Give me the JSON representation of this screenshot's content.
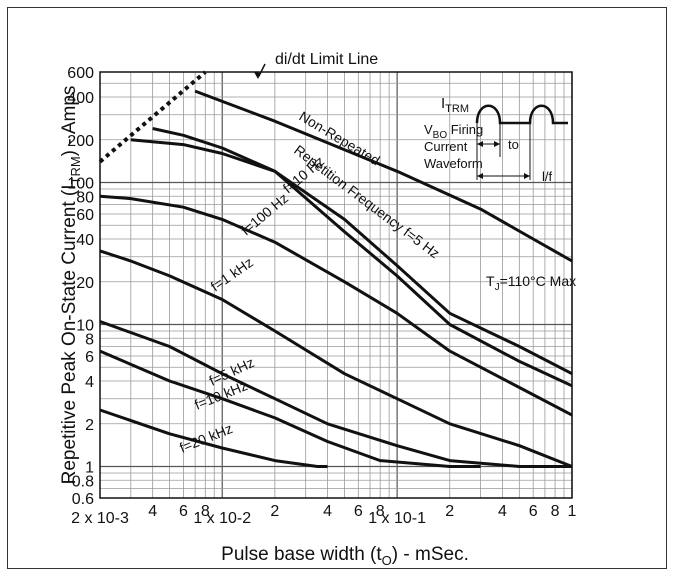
{
  "chart_data": {
    "type": "line",
    "title": "",
    "xlabel": "Pulse base width (tO) - mSec.",
    "ylabel": "Repetitive Peak On-State Current (ITRM) - Amps",
    "x_scale": "log",
    "y_scale": "log",
    "xlim": [
      0.002,
      1.0
    ],
    "ylim": [
      0.6,
      600
    ],
    "x_tick_labels": [
      {
        "v": 0.002,
        "t": "2 x 10-3"
      },
      {
        "v": 0.004,
        "t": "4"
      },
      {
        "v": 0.006,
        "t": "6"
      },
      {
        "v": 0.008,
        "t": "8"
      },
      {
        "v": 0.01,
        "t": "1 x 10-2"
      },
      {
        "v": 0.02,
        "t": "2"
      },
      {
        "v": 0.04,
        "t": "4"
      },
      {
        "v": 0.06,
        "t": "6"
      },
      {
        "v": 0.08,
        "t": "8"
      },
      {
        "v": 0.1,
        "t": "1 x 10-1"
      },
      {
        "v": 0.2,
        "t": "2"
      },
      {
        "v": 0.4,
        "t": "4"
      },
      {
        "v": 0.6,
        "t": "6"
      },
      {
        "v": 0.8,
        "t": "8"
      },
      {
        "v": 1.0,
        "t": "1"
      }
    ],
    "y_tick_labels": [
      {
        "v": 600,
        "t": "600"
      },
      {
        "v": 400,
        "t": "400"
      },
      {
        "v": 200,
        "t": "200"
      },
      {
        "v": 100,
        "t": "100"
      },
      {
        "v": 80,
        "t": "80"
      },
      {
        "v": 60,
        "t": "60"
      },
      {
        "v": 40,
        "t": "40"
      },
      {
        "v": 20,
        "t": "20"
      },
      {
        "v": 10,
        "t": "10"
      },
      {
        "v": 8,
        "t": "8"
      },
      {
        "v": 6,
        "t": "6"
      },
      {
        "v": 4,
        "t": "4"
      },
      {
        "v": 2,
        "t": "2"
      },
      {
        "v": 1,
        "t": "1"
      },
      {
        "v": 0.8,
        "t": "0.8"
      },
      {
        "v": 0.6,
        "t": "0.6"
      }
    ],
    "grid": true,
    "series": [
      {
        "name": "Non-Repeated",
        "x": [
          0.007,
          0.02,
          0.05,
          0.1,
          0.3,
          0.6,
          1.0
        ],
        "y": [
          440,
          270,
          170,
          120,
          65,
          40,
          28
        ]
      },
      {
        "name": "Repetition Frequency f=5 Hz",
        "x": [
          0.003,
          0.006,
          0.01,
          0.02,
          0.05,
          0.1,
          0.2,
          0.5,
          1.0
        ],
        "y": [
          200,
          185,
          160,
          120,
          55,
          26,
          12,
          7,
          4.5
        ]
      },
      {
        "name": "f=10 Hz",
        "x": [
          0.004,
          0.006,
          0.01,
          0.02,
          0.05,
          0.1,
          0.2,
          0.5,
          1.0
        ],
        "y": [
          240,
          215,
          175,
          120,
          45,
          22,
          10,
          5.5,
          3.7
        ]
      },
      {
        "name": "f=100 Hz",
        "x": [
          0.002,
          0.003,
          0.006,
          0.01,
          0.02,
          0.05,
          0.1,
          0.2,
          0.5,
          1.0
        ],
        "y": [
          80,
          77,
          67,
          55,
          38,
          20,
          12,
          6.5,
          3.6,
          2.3
        ]
      },
      {
        "name": "f=1 kHz",
        "x": [
          0.002,
          0.003,
          0.005,
          0.01,
          0.02,
          0.05,
          0.1,
          0.2,
          0.5,
          1.0
        ],
        "y": [
          33,
          28,
          22,
          15,
          9,
          4.5,
          3,
          2,
          1.4,
          1.0
        ]
      },
      {
        "name": "f=5 kHz",
        "x": [
          0.002,
          0.005,
          0.01,
          0.02,
          0.04,
          0.1,
          0.2,
          0.5,
          1.0
        ],
        "y": [
          10.5,
          7,
          4.5,
          3,
          2,
          1.4,
          1.1,
          1.0,
          1.0
        ]
      },
      {
        "name": "f=10 kHz",
        "x": [
          0.002,
          0.005,
          0.01,
          0.02,
          0.04,
          0.08,
          0.2,
          0.3
        ],
        "y": [
          6.5,
          4,
          3,
          2.2,
          1.5,
          1.1,
          1.0,
          1.0
        ]
      },
      {
        "name": "f=20 kHz",
        "x": [
          0.002,
          0.005,
          0.01,
          0.02,
          0.035,
          0.04
        ],
        "y": [
          2.5,
          1.7,
          1.35,
          1.1,
          1.0,
          1.0
        ]
      },
      {
        "name": "di/dt Limit Line",
        "dashed": true,
        "x": [
          0.002,
          0.008
        ],
        "y": [
          140,
          600
        ]
      }
    ],
    "annotations": {
      "didt": "di/dt Limit Line",
      "nonrep": "Non-Repeated",
      "repfreq": "Repetition Frequency f=5 Hz",
      "f10hz": "f=10 Hz",
      "f100hz": "f=100 Hz",
      "f1khz": "f=1 kHz",
      "f5khz": "f=5 kHz",
      "f10khz": "f=10 kHz",
      "f20khz": "f=20 kHz",
      "tj": "TJ=110°C Max",
      "itrm": "ITRM",
      "vbo": "VBO Firing",
      "current": "Current",
      "waveform": "Waveform",
      "to": "to",
      "lf": "l/f"
    }
  }
}
